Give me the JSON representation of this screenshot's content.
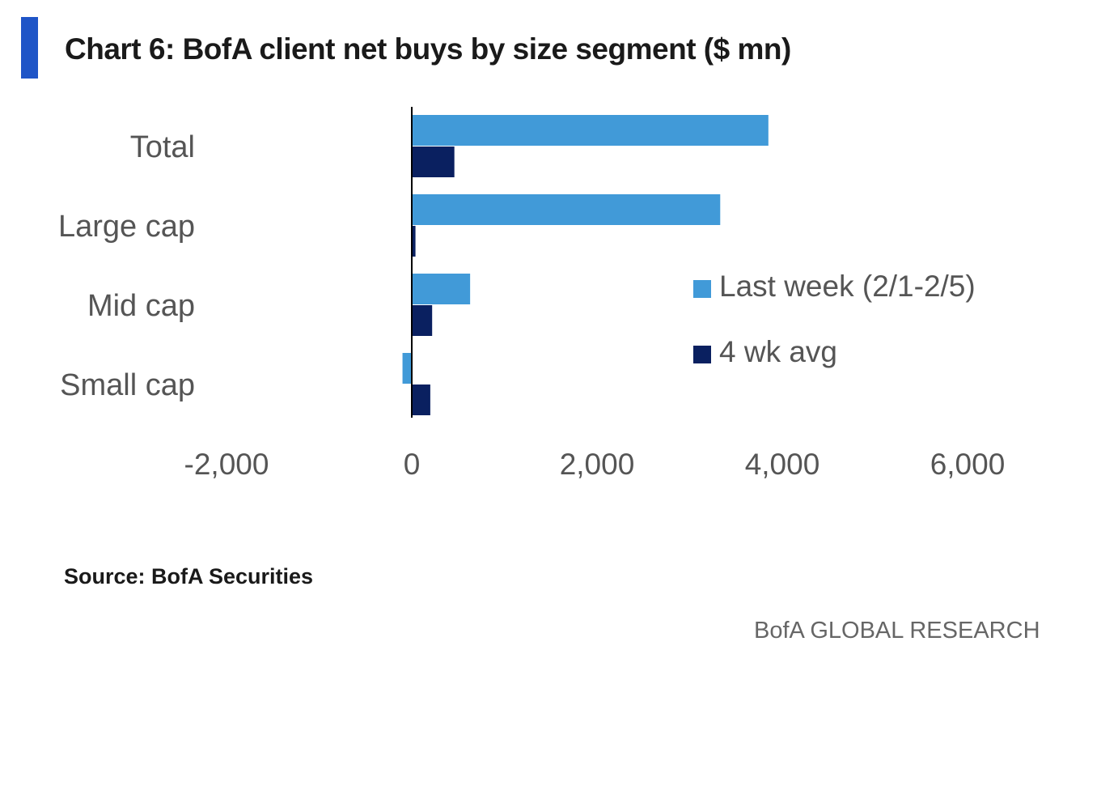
{
  "title": "Chart 6: BofA client net buys by size segment ($ mn)",
  "source": "Source: BofA Securities",
  "footer_brand": "BofA GLOBAL RESEARCH",
  "colors": {
    "accent": "#1f55c7",
    "last_week": "#419ad8",
    "avg": "#0a2060",
    "text": "#555555"
  },
  "chart_data": {
    "type": "bar",
    "orientation": "horizontal",
    "categories": [
      "Total",
      "Large cap",
      "Mid cap",
      "Small cap"
    ],
    "series": [
      {
        "name": "Last week (2/1-2/5)",
        "values": [
          3850,
          3330,
          630,
          -100
        ],
        "color": "#419ad8"
      },
      {
        "name": "4 wk avg",
        "values": [
          460,
          40,
          220,
          200
        ],
        "color": "#0a2060"
      }
    ],
    "xlim": [
      -2000,
      6000
    ],
    "xticks": [
      -2000,
      0,
      2000,
      4000,
      6000
    ],
    "xtick_labels": [
      "-2,000",
      "0",
      "2,000",
      "4,000",
      "6,000"
    ],
    "title": "Chart 6: BofA client net buys by size segment ($ mn)",
    "xlabel": "",
    "ylabel": "",
    "grid": false,
    "legend_position": "right"
  }
}
